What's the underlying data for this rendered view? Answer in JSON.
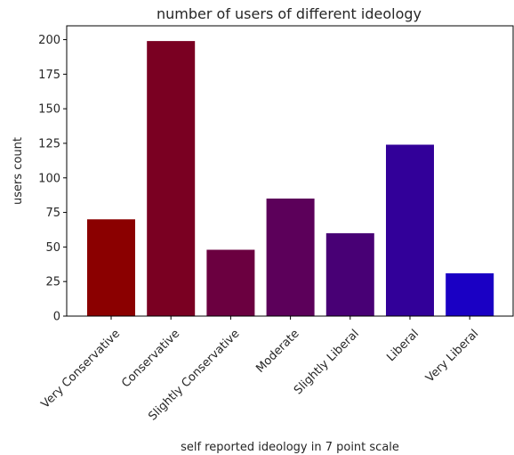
{
  "chart_data": {
    "type": "bar",
    "title": "number of users of different ideology",
    "xlabel": "self reported ideology in 7 point scale",
    "ylabel": "users count",
    "categories": [
      "Very Conservative",
      "Conservative",
      "Slightly Conservative",
      "Moderate",
      "Slightly Liberal",
      "Liberal",
      "Very Liberal"
    ],
    "values": [
      70,
      199,
      48,
      85,
      60,
      124,
      31
    ],
    "colors": [
      "#8b0000",
      "#7a0022",
      "#6b0040",
      "#5c005a",
      "#480075",
      "#320099",
      "#1a00c4"
    ],
    "ylim": [
      0,
      210
    ],
    "yticks": [
      0,
      25,
      50,
      75,
      100,
      125,
      150,
      175,
      200
    ],
    "grid": false,
    "legend": "none"
  }
}
